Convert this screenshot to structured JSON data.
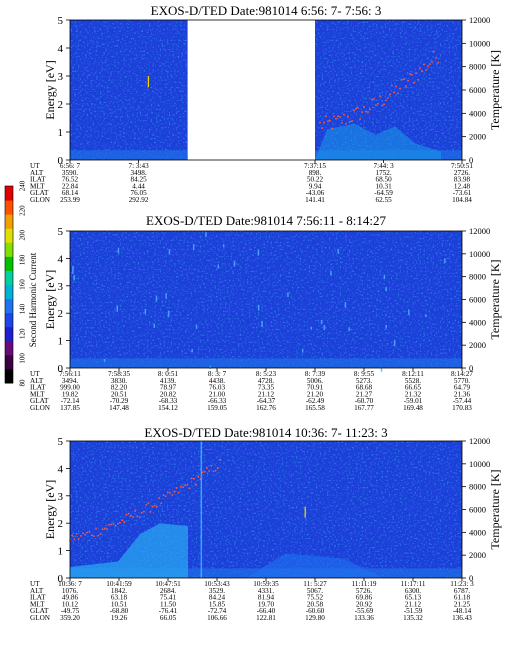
{
  "colorbar": {
    "label": "Second Harmonic Current",
    "ticks": [
      "80",
      "100",
      "120",
      "140",
      "160",
      "180",
      "200",
      "220",
      "240"
    ],
    "colors": [
      "#000000",
      "#3a0040",
      "#6a0a7a",
      "#1f1fd0",
      "#1e46e6",
      "#1f73f0",
      "#00b0d8",
      "#00d0a0",
      "#00c000",
      "#80e000",
      "#e0e000",
      "#f0a000",
      "#ff5000",
      "#e00000"
    ]
  },
  "chart_data": [
    {
      "type": "heatmap",
      "title": "EXOS-D/TED   Date:981014  6:56: 7- 7:56: 3",
      "ylabel": "Energy [eV]",
      "y2label": "Temperature [K]",
      "ylim": [
        0,
        5
      ],
      "y2lim": [
        0,
        12000
      ],
      "yticks": [
        "0",
        "1",
        "2",
        "3",
        "4",
        "5"
      ],
      "y2ticks": [
        "0",
        "2000",
        "4000",
        "6000",
        "8000",
        "10000",
        "12000"
      ],
      "segments": [
        {
          "start": 0,
          "end": 0.3
        },
        {
          "start": 0.625,
          "end": 1
        }
      ],
      "table": {
        "rows": [
          "UT",
          "ALT",
          "ILAT",
          "MLT",
          "GLAT",
          "GLON"
        ],
        "columns": [
          {
            "at": 0,
            "values": [
              "6:56: 7",
              "3590.",
              "76.52",
              "22.84",
              "68.14",
              "253.99"
            ]
          },
          {
            "at": 0.175,
            "values": [
              "7: 3:43",
              "3498.",
              "84.25",
              "4.44",
              "76.05",
              "292.92"
            ]
          },
          {
            "at": 0.625,
            "values": [
              "7:37:15",
              "898.",
              "50.22",
              "9.94",
              "-43.06",
              "141.41"
            ]
          },
          {
            "at": 0.8,
            "values": [
              "7:44: 3",
              "1752.",
              "68.50",
              "10.31",
              "-64.59",
              "62.55"
            ]
          },
          {
            "at": 1,
            "values": [
              "7:50:51",
              "2726.",
              "83.98",
              "12.48",
              "-73.61",
              "104.84"
            ]
          }
        ]
      }
    },
    {
      "type": "heatmap",
      "title": "EXOS-D/TED   Date:981014  7:56:11 - 8:14:27",
      "ylabel": "Energy [eV]",
      "y2label": "Temperature [K]",
      "ylim": [
        0,
        5
      ],
      "y2lim": [
        0,
        12000
      ],
      "yticks": [
        "0",
        "1",
        "2",
        "3",
        "4",
        "5"
      ],
      "y2ticks": [
        "0",
        "2000",
        "4000",
        "6000",
        "8000",
        "10000",
        "12000"
      ],
      "segments": [
        {
          "start": 0,
          "end": 1
        }
      ],
      "table": {
        "rows": [
          "UT",
          "ALT",
          "ILAT",
          "MLT",
          "GLAT",
          "GLON"
        ],
        "columns": [
          {
            "at": 0,
            "values": [
              "7:56:11",
              "3494.",
              "999.00",
              "19.82",
              "-72.14",
              "137.85"
            ]
          },
          {
            "at": 0.125,
            "values": [
              "7:58:35",
              "3830.",
              "82.20",
              "20.51",
              "-70.29",
              "147.48"
            ]
          },
          {
            "at": 0.25,
            "values": [
              "8: 0:51",
              "4139.",
              "78.97",
              "20.82",
              "-68.33",
              "154.12"
            ]
          },
          {
            "at": 0.375,
            "values": [
              "8: 3: 7",
              "4438.",
              "76.03",
              "21.00",
              "-66.33",
              "159.05"
            ]
          },
          {
            "at": 0.5,
            "values": [
              "8: 5:23",
              "4728.",
              "73.35",
              "21.12",
              "-64.37",
              "162.76"
            ]
          },
          {
            "at": 0.625,
            "values": [
              "8: 7:39",
              "5006.",
              "70.91",
              "21.20",
              "-62.49",
              "165.58"
            ]
          },
          {
            "at": 0.75,
            "values": [
              "8: 9:55",
              "5273.",
              "68.68",
              "21.27",
              "-60.70",
              "167.77"
            ]
          },
          {
            "at": 0.875,
            "values": [
              "8:12:11",
              "5528.",
              "66.65",
              "21.32",
              "-59.01",
              "169.48"
            ]
          },
          {
            "at": 1,
            "values": [
              "8:14:27",
              "5770.",
              "64.79",
              "21.36",
              "-57.44",
              "170.83"
            ]
          }
        ]
      }
    },
    {
      "type": "heatmap",
      "title": "EXOS-D/TED   Date:981014  10:36: 7- 11:23: 3",
      "ylabel": "Energy [eV]",
      "y2label": "Temperature [K]",
      "ylim": [
        0,
        5
      ],
      "y2lim": [
        0,
        12000
      ],
      "yticks": [
        "0",
        "1",
        "2",
        "3",
        "4",
        "5"
      ],
      "y2ticks": [
        "0",
        "2000",
        "4000",
        "6000",
        "8000",
        "10000",
        "12000"
      ],
      "segments": [
        {
          "start": 0,
          "end": 1
        }
      ],
      "table": {
        "rows": [
          "UT",
          "ALT",
          "ILAT",
          "MLT",
          "GLAT",
          "GLON"
        ],
        "columns": [
          {
            "at": 0,
            "values": [
              "10:36: 7",
              "1076.",
              "49.86",
              "10.12",
              "-49.75",
              "359.20"
            ]
          },
          {
            "at": 0.125,
            "values": [
              "10:41:59",
              "1842.",
              "63.18",
              "10.51",
              "-68.80",
              "19.26"
            ]
          },
          {
            "at": 0.25,
            "values": [
              "10:47:51",
              "2684.",
              "75.41",
              "11.50",
              "-76.41",
              "66.05"
            ]
          },
          {
            "at": 0.375,
            "values": [
              "10:53:43",
              "3529.",
              "84.24",
              "15.85",
              "-72.74",
              "106.66"
            ]
          },
          {
            "at": 0.5,
            "values": [
              "10:59:35",
              "4331.",
              "81.94",
              "19.70",
              "-66.40",
              "122.81"
            ]
          },
          {
            "at": 0.625,
            "values": [
              "11: 5:27",
              "5067.",
              "75.52",
              "20.58",
              "-60.60",
              "129.80"
            ]
          },
          {
            "at": 0.75,
            "values": [
              "11:11:19",
              "5726.",
              "69.86",
              "20.92",
              "-55.69",
              "133.36"
            ]
          },
          {
            "at": 0.875,
            "values": [
              "11:17:11",
              "6300.",
              "65.13",
              "21.12",
              "-51.59",
              "135.32"
            ]
          },
          {
            "at": 1,
            "values": [
              "11:23: 3",
              "6787.",
              "61.18",
              "21.25",
              "-48.14",
              "136.43"
            ]
          }
        ]
      }
    }
  ]
}
